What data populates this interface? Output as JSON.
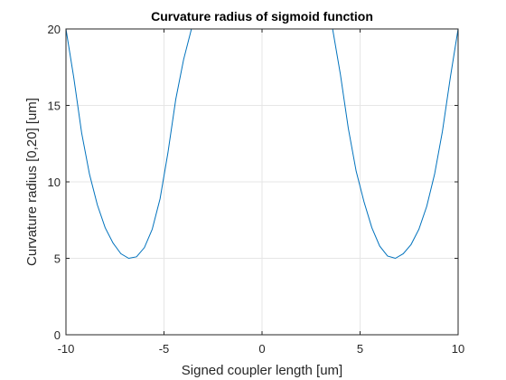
{
  "chart_data": {
    "type": "line",
    "title": "Curvature radius of sigmoid function",
    "xlabel": "Signed coupler length [um]",
    "ylabel": "Curvature radius [0,20] [um]",
    "xlim": [
      -10,
      10
    ],
    "ylim": [
      0,
      20
    ],
    "xticks": [
      -10,
      -5,
      0,
      5,
      10
    ],
    "yticks": [
      0,
      5,
      10,
      15,
      20
    ],
    "grid": true,
    "box": true,
    "series_color": "#0072BD",
    "series": [
      {
        "x": [
          -10,
          -9.6,
          -9.2,
          -8.8,
          -8.4,
          -8.0,
          -7.6,
          -7.2,
          -6.8,
          -6.4,
          -6.0,
          -5.6,
          -5.2,
          -4.8,
          -4.4,
          -4.0,
          -3.6,
          -3.3
        ],
        "y": [
          20,
          16.8,
          13.2,
          10.5,
          8.5,
          7.0,
          6.0,
          5.3,
          5.0,
          5.1,
          5.7,
          6.9,
          8.9,
          11.9,
          15.4,
          18.0,
          20,
          20
        ]
      },
      {
        "x": [
          3.3,
          3.6,
          4.0,
          4.4,
          4.8,
          5.2,
          5.6,
          6.0,
          6.4,
          6.8,
          7.2,
          7.6,
          8.0,
          8.4,
          8.8,
          9.2,
          9.6,
          10
        ],
        "y": [
          20,
          20,
          17.0,
          13.5,
          10.7,
          8.7,
          7.0,
          5.8,
          5.15,
          5.0,
          5.3,
          5.9,
          6.9,
          8.4,
          10.5,
          13.3,
          16.8,
          20
        ]
      }
    ]
  }
}
